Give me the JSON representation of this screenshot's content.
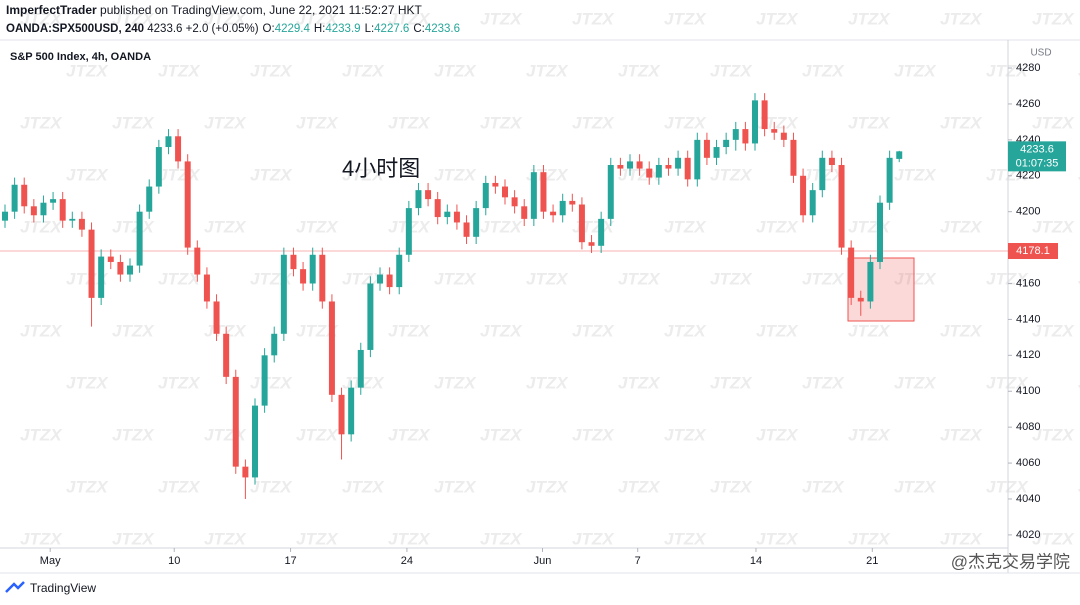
{
  "header": {
    "publisher": "ImperfectTrader",
    "published": "published on TradingView.com, June 22, 2021 11:52:27 HKT",
    "symbol": "OANDA:SPX500USD, 240",
    "change": "+2.0 (+0.05%)",
    "ohlc": [
      {
        "label": "O:",
        "value": "4229.4"
      },
      {
        "label": "H:",
        "value": "4233.9"
      },
      {
        "label": "L:",
        "value": "4227.6"
      },
      {
        "label": "C:",
        "value": "4233.6"
      }
    ]
  },
  "chart_data": {
    "type": "candlestick",
    "title": "S&P 500 Index, 4h, OANDA",
    "annotation": "4小时图",
    "currency": "USD",
    "up_color": "#26a69a",
    "down_color": "#ef5350",
    "xlim": [
      0,
      104
    ],
    "xticks": [
      {
        "value": 4.7,
        "label": "May"
      },
      {
        "value": 17.6,
        "label": "10"
      },
      {
        "value": 29.7,
        "label": "17"
      },
      {
        "value": 41.8,
        "label": "24"
      },
      {
        "value": 55.9,
        "label": "Jun"
      },
      {
        "value": 65.8,
        "label": "7"
      },
      {
        "value": 78.1,
        "label": "14"
      },
      {
        "value": 90.2,
        "label": "21"
      }
    ],
    "ylim": [
      4012.7,
      4294.5
    ],
    "yticks": [
      4020,
      4040,
      4060,
      4080,
      4100,
      4120,
      4140,
      4160,
      4180,
      4200,
      4220,
      4240,
      4260,
      4280
    ],
    "prev_close_line": 4178.1,
    "last_price": 4233.6,
    "countdown": "01:07:35",
    "open": [
      4195,
      4200,
      4215,
      4203,
      4198,
      4205,
      4207,
      4195,
      4196,
      4190,
      4152,
      4175,
      4172,
      4165,
      4170,
      4200,
      4214,
      4236,
      4242,
      4228,
      4180,
      4165,
      4150,
      4132,
      4108,
      4058,
      4052,
      4092,
      4120,
      4132,
      4176,
      4168,
      4160,
      4176,
      4150,
      4098,
      4076,
      4102,
      4123,
      4160,
      4165,
      4158,
      4176,
      4202,
      4212,
      4207,
      4197,
      4200,
      4194,
      4186,
      4202,
      4216,
      4214,
      4208,
      4203,
      4196,
      4222,
      4200,
      4198,
      4206,
      4204,
      4183,
      4181,
      4196,
      4226,
      4224,
      4228,
      4224,
      4219,
      4226,
      4224,
      4230,
      4218,
      4240,
      4230,
      4236,
      4240,
      4246,
      4238,
      4262,
      4246,
      4244,
      4240,
      4220,
      4198,
      4212,
      4230,
      4226,
      4180,
      4152,
      4150,
      4172,
      4205,
      4229.4
    ],
    "high": [
      4204,
      4219,
      4219,
      4207,
      4209,
      4211,
      4211,
      4200,
      4200,
      4194,
      4179,
      4179,
      4176,
      4174,
      4204,
      4218,
      4240,
      4246,
      4246,
      4232,
      4184,
      4169,
      4154,
      4136,
      4112,
      4062,
      4096,
      4124,
      4136,
      4180,
      4180,
      4172,
      4180,
      4180,
      4154,
      4102,
      4106,
      4127,
      4164,
      4169,
      4169,
      4180,
      4206,
      4216,
      4216,
      4211,
      4204,
      4204,
      4198,
      4206,
      4220,
      4220,
      4218,
      4212,
      4207,
      4226,
      4226,
      4204,
      4210,
      4210,
      4208,
      4187,
      4200,
      4230,
      4230,
      4232,
      4232,
      4228,
      4230,
      4230,
      4234,
      4234,
      4244,
      4244,
      4240,
      4244,
      4250,
      4250,
      4266,
      4266,
      4250,
      4248,
      4244,
      4224,
      4216,
      4234,
      4234,
      4230,
      4184,
      4156,
      4176,
      4209,
      4234,
      4233.9
    ],
    "low": [
      4191,
      4196,
      4199,
      4194,
      4194,
      4201,
      4191,
      4191,
      4186,
      4136,
      4148,
      4168,
      4161,
      4161,
      4166,
      4196,
      4210,
      4232,
      4224,
      4176,
      4161,
      4146,
      4128,
      4104,
      4054,
      4040,
      4048,
      4088,
      4116,
      4128,
      4164,
      4156,
      4156,
      4146,
      4094,
      4062,
      4072,
      4098,
      4119,
      4156,
      4154,
      4154,
      4172,
      4198,
      4203,
      4193,
      4193,
      4190,
      4182,
      4182,
      4198,
      4210,
      4204,
      4199,
      4192,
      4192,
      4196,
      4194,
      4194,
      4200,
      4179,
      4177,
      4177,
      4192,
      4220,
      4220,
      4220,
      4215,
      4215,
      4220,
      4220,
      4214,
      4214,
      4226,
      4226,
      4232,
      4234,
      4234,
      4234,
      4242,
      4240,
      4236,
      4216,
      4194,
      4194,
      4208,
      4222,
      4176,
      4148,
      4142,
      4146,
      4168,
      4201,
      4227.6
    ],
    "close": [
      4200,
      4215,
      4203,
      4198,
      4205,
      4207,
      4195,
      4196,
      4190,
      4152,
      4175,
      4172,
      4165,
      4170,
      4200,
      4214,
      4236,
      4242,
      4228,
      4180,
      4165,
      4150,
      4132,
      4108,
      4058,
      4052,
      4092,
      4120,
      4132,
      4176,
      4168,
      4160,
      4176,
      4150,
      4098,
      4076,
      4102,
      4123,
      4160,
      4165,
      4158,
      4176,
      4202,
      4212,
      4207,
      4197,
      4200,
      4194,
      4186,
      4202,
      4216,
      4214,
      4208,
      4203,
      4196,
      4222,
      4200,
      4198,
      4206,
      4204,
      4183,
      4181,
      4196,
      4226,
      4224,
      4228,
      4224,
      4219,
      4226,
      4224,
      4230,
      4218,
      4240,
      4230,
      4236,
      4240,
      4246,
      4238,
      4262,
      4246,
      4244,
      4240,
      4220,
      4198,
      4212,
      4230,
      4226,
      4180,
      4152,
      4150,
      4172,
      4205,
      4230,
      4233.6
    ]
  },
  "watermark": "JTZX",
  "footer": {
    "logo": "TradingView",
    "credit": "@杰克交易学院"
  }
}
